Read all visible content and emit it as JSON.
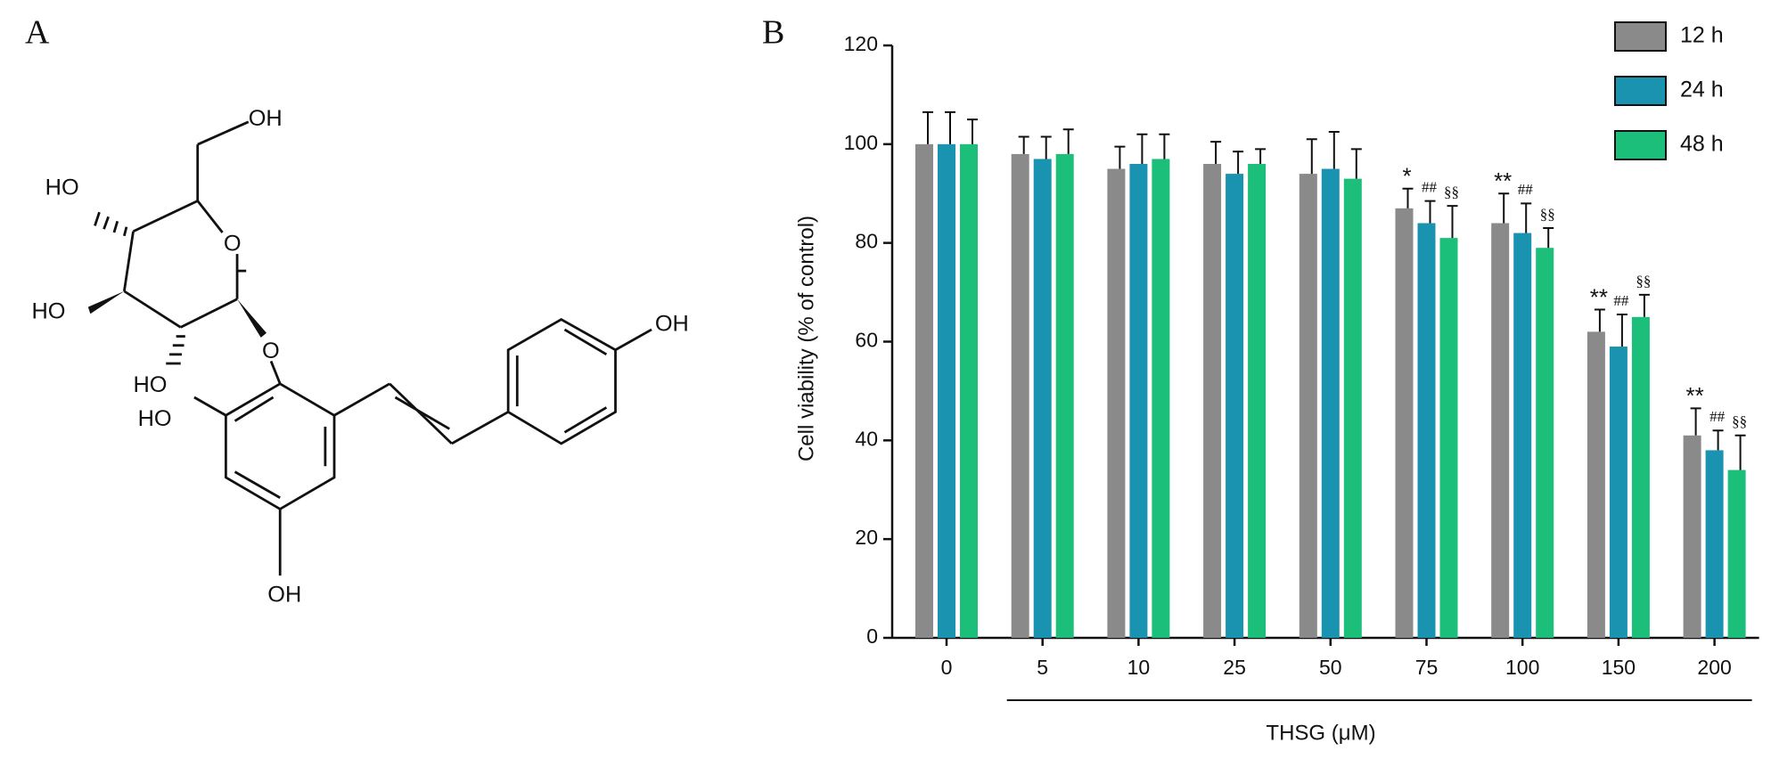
{
  "panel_labels": [
    "A",
    "B"
  ],
  "structure": {
    "labels": [
      "OH",
      "HO",
      "O",
      "HO",
      "O",
      "HO",
      "HO",
      "OH",
      "OH"
    ]
  },
  "chart_data": {
    "type": "bar",
    "ylabel": "Cell viability (% of control)",
    "xlabel": "THSG (μM)",
    "categories": [
      "0",
      "5",
      "10",
      "25",
      "50",
      "75",
      "100",
      "150",
      "200"
    ],
    "ylim": [
      0,
      120
    ],
    "yticks": [
      0,
      20,
      40,
      60,
      80,
      100,
      120
    ],
    "legend": "top-right",
    "series": [
      {
        "name": "12 h",
        "color": "#8a8a8a",
        "values": [
          100,
          98,
          95,
          96,
          94,
          87,
          84,
          62,
          41
        ],
        "errors": [
          6.5,
          3.5,
          4.5,
          4.5,
          7,
          4,
          6,
          4.5,
          5.5
        ],
        "annotations": [
          null,
          null,
          null,
          null,
          null,
          "*",
          "**",
          "**",
          "**"
        ]
      },
      {
        "name": "24 h",
        "color": "#1a93b0",
        "values": [
          100,
          97,
          96,
          94,
          95,
          84,
          82,
          59,
          38
        ],
        "errors": [
          6.5,
          4.5,
          6,
          4.5,
          7.5,
          4.5,
          6,
          6.5,
          4
        ],
        "annotations": [
          null,
          null,
          null,
          null,
          null,
          "##",
          "##",
          "##",
          "##"
        ]
      },
      {
        "name": "48 h",
        "color": "#1cbf7a",
        "values": [
          100,
          98,
          97,
          96,
          93,
          81,
          79,
          65,
          34
        ],
        "errors": [
          5,
          5,
          5,
          3,
          6,
          6.5,
          4,
          4.5,
          7
        ],
        "annotations": [
          null,
          null,
          null,
          null,
          null,
          "§§",
          "§§",
          "§§",
          "§§"
        ]
      }
    ]
  }
}
